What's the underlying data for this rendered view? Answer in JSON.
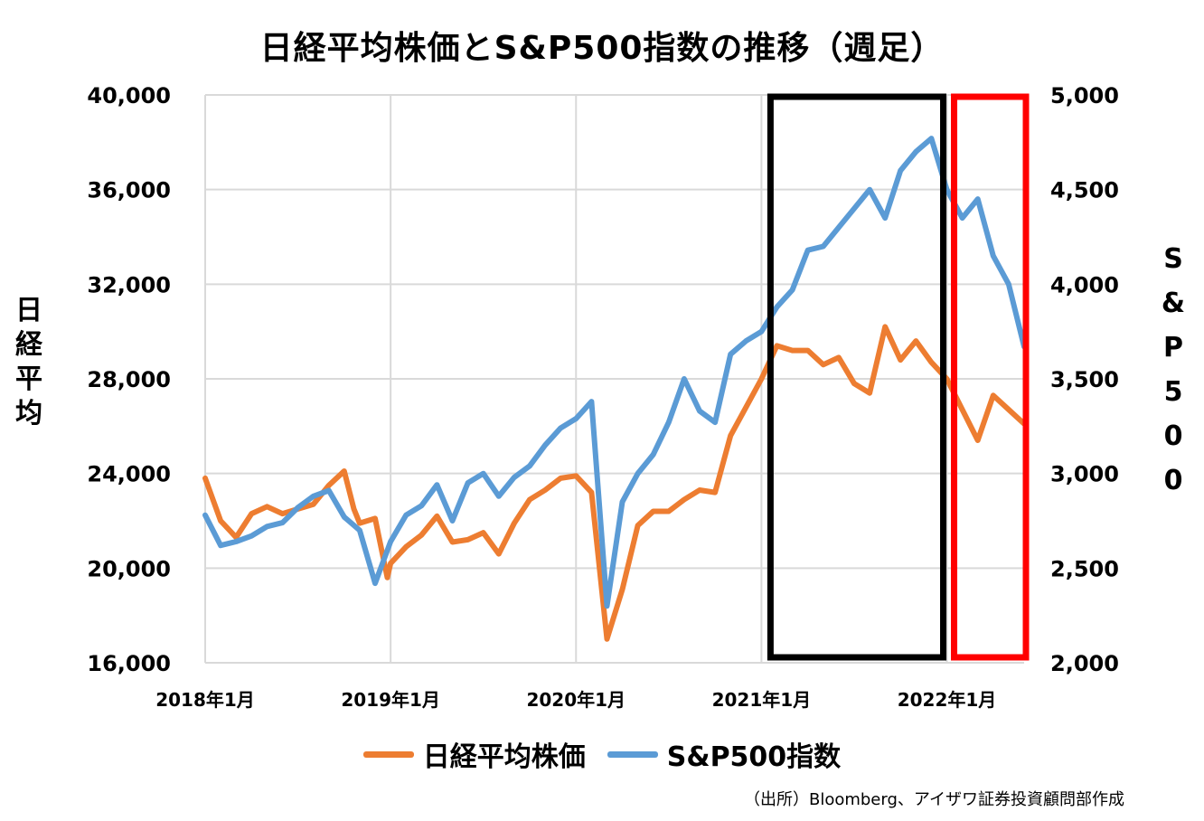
{
  "chart_data": {
    "type": "line",
    "title": "日経平均株価とS&P500指数の推移（週足）",
    "ylabel_left": "日経平均",
    "ylabel_right": "S&P500",
    "ylim_left": [
      16000,
      40000
    ],
    "ylim_right": [
      2000,
      5000
    ],
    "yticks_left": [
      "16,000",
      "20,000",
      "24,000",
      "28,000",
      "32,000",
      "36,000",
      "40,000"
    ],
    "yticks_right": [
      "2,000",
      "2,500",
      "3,000",
      "3,500",
      "4,000",
      "4,500",
      "5,000"
    ],
    "xticks": [
      "2018年1月",
      "2019年1月",
      "2020年1月",
      "2021年1月",
      "2022年1月"
    ],
    "x_range": [
      "2018-01",
      "2022-06"
    ],
    "grid": true,
    "legend_position": "bottom",
    "highlight_boxes": [
      {
        "from": "2021-01",
        "to": "2022-01",
        "color": "#000000"
      },
      {
        "from": "2022-01",
        "to": "2022-06",
        "color": "#ff0000"
      }
    ],
    "series": [
      {
        "name": "日経平均株価",
        "axis": "left",
        "color": "#ED7D31",
        "points": [
          [
            "2018-01",
            23800
          ],
          [
            "2018-02",
            22000
          ],
          [
            "2018-03",
            21300
          ],
          [
            "2018-04",
            22300
          ],
          [
            "2018-05",
            22600
          ],
          [
            "2018-06",
            22300
          ],
          [
            "2018-07",
            22500
          ],
          [
            "2018-08",
            22700
          ],
          [
            "2018-09",
            23500
          ],
          [
            "2018-10",
            24100
          ],
          [
            "2018-10-20",
            22500
          ],
          [
            "2018-11",
            21900
          ],
          [
            "2018-12",
            22100
          ],
          [
            "2018-12-25",
            19600
          ],
          [
            "2019-01",
            20200
          ],
          [
            "2019-02",
            20900
          ],
          [
            "2019-03",
            21400
          ],
          [
            "2019-04",
            22200
          ],
          [
            "2019-05",
            21100
          ],
          [
            "2019-06",
            21200
          ],
          [
            "2019-07",
            21500
          ],
          [
            "2019-08",
            20600
          ],
          [
            "2019-09",
            21900
          ],
          [
            "2019-10",
            22900
          ],
          [
            "2019-11",
            23300
          ],
          [
            "2019-12",
            23800
          ],
          [
            "2020-01",
            23900
          ],
          [
            "2020-02",
            23200
          ],
          [
            "2020-03",
            17000
          ],
          [
            "2020-04",
            19100
          ],
          [
            "2020-05",
            21800
          ],
          [
            "2020-06",
            22400
          ],
          [
            "2020-07",
            22400
          ],
          [
            "2020-08",
            22900
          ],
          [
            "2020-09",
            23300
          ],
          [
            "2020-10",
            23200
          ],
          [
            "2020-11",
            25600
          ],
          [
            "2020-12",
            26800
          ],
          [
            "2021-01",
            28000
          ],
          [
            "2021-02",
            29400
          ],
          [
            "2021-03",
            29200
          ],
          [
            "2021-04",
            29200
          ],
          [
            "2021-05",
            28600
          ],
          [
            "2021-06",
            28900
          ],
          [
            "2021-07",
            27800
          ],
          [
            "2021-08",
            27400
          ],
          [
            "2021-09",
            30200
          ],
          [
            "2021-10",
            28800
          ],
          [
            "2021-11",
            29600
          ],
          [
            "2021-12",
            28700
          ],
          [
            "2022-01",
            28000
          ],
          [
            "2022-02",
            26700
          ],
          [
            "2022-03",
            25400
          ],
          [
            "2022-04",
            27300
          ],
          [
            "2022-05",
            26700
          ],
          [
            "2022-06",
            26100
          ]
        ]
      },
      {
        "name": "S&P500指数",
        "axis": "right",
        "color": "#5B9BD5",
        "points": [
          [
            "2018-01",
            2780
          ],
          [
            "2018-02",
            2620
          ],
          [
            "2018-03",
            2640
          ],
          [
            "2018-04",
            2670
          ],
          [
            "2018-05",
            2720
          ],
          [
            "2018-06",
            2740
          ],
          [
            "2018-07",
            2820
          ],
          [
            "2018-08",
            2880
          ],
          [
            "2018-09",
            2910
          ],
          [
            "2018-10",
            2770
          ],
          [
            "2018-11",
            2700
          ],
          [
            "2018-12",
            2420
          ],
          [
            "2019-01",
            2640
          ],
          [
            "2019-02",
            2780
          ],
          [
            "2019-03",
            2830
          ],
          [
            "2019-04",
            2940
          ],
          [
            "2019-05",
            2750
          ],
          [
            "2019-06",
            2950
          ],
          [
            "2019-07",
            3000
          ],
          [
            "2019-08",
            2880
          ],
          [
            "2019-09",
            2980
          ],
          [
            "2019-10",
            3040
          ],
          [
            "2019-11",
            3150
          ],
          [
            "2019-12",
            3240
          ],
          [
            "2020-01",
            3290
          ],
          [
            "2020-02",
            3380
          ],
          [
            "2020-03",
            2300
          ],
          [
            "2020-04",
            2850
          ],
          [
            "2020-05",
            3000
          ],
          [
            "2020-06",
            3100
          ],
          [
            "2020-07",
            3270
          ],
          [
            "2020-08",
            3500
          ],
          [
            "2020-09",
            3330
          ],
          [
            "2020-10",
            3270
          ],
          [
            "2020-11",
            3630
          ],
          [
            "2020-12",
            3700
          ],
          [
            "2021-01",
            3750
          ],
          [
            "2021-02",
            3880
          ],
          [
            "2021-03",
            3970
          ],
          [
            "2021-04",
            4180
          ],
          [
            "2021-05",
            4200
          ],
          [
            "2021-06",
            4300
          ],
          [
            "2021-07",
            4400
          ],
          [
            "2021-08",
            4500
          ],
          [
            "2021-09",
            4350
          ],
          [
            "2021-10",
            4600
          ],
          [
            "2021-11",
            4700
          ],
          [
            "2021-12",
            4770
          ],
          [
            "2022-01",
            4500
          ],
          [
            "2022-02",
            4350
          ],
          [
            "2022-03",
            4450
          ],
          [
            "2022-04",
            4150
          ],
          [
            "2022-05",
            4000
          ],
          [
            "2022-06",
            3670
          ]
        ]
      }
    ]
  },
  "source_note": "（出所）Bloomberg、アイザワ証券投資顧問部作成"
}
